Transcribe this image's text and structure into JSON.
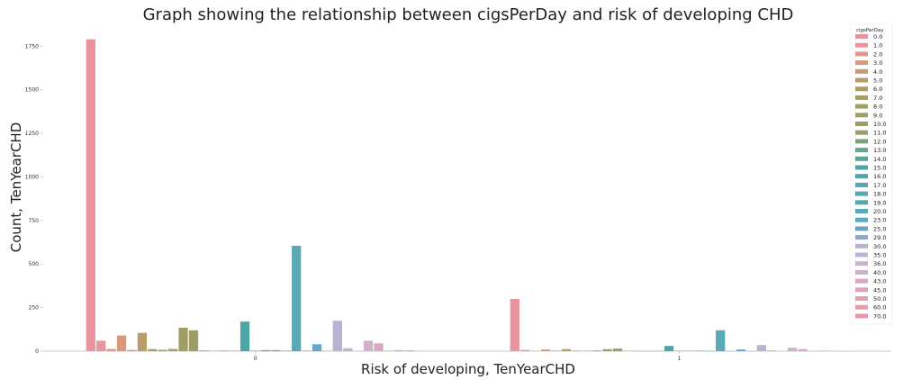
{
  "chart_data": {
    "type": "bar",
    "title": "Graph showing the relationship between cigsPerDay and risk of developing CHD",
    "xlabel": "Risk of developing, TenYearCHD",
    "ylabel": "Count, TenYearCHD",
    "categories": [
      "0",
      "1"
    ],
    "ylim": [
      0,
      1850
    ],
    "yticks": [
      0,
      250,
      500,
      750,
      1000,
      1250,
      1500,
      1750
    ],
    "grid": false,
    "legend_title": "cigsPerDay",
    "legend_position": "top-right",
    "series": [
      {
        "name": "0.0",
        "color": "#e8949f",
        "values": [
          1790,
          300
        ]
      },
      {
        "name": "1.0",
        "color": "#e8949f",
        "values": [
          60,
          7
        ]
      },
      {
        "name": "2.0",
        "color": "#e59488",
        "values": [
          13,
          2
        ]
      },
      {
        "name": "3.0",
        "color": "#d8997a",
        "values": [
          90,
          10
        ]
      },
      {
        "name": "4.0",
        "color": "#c99b74",
        "values": [
          7,
          3
        ]
      },
      {
        "name": "5.0",
        "color": "#b99c6c",
        "values": [
          105,
          12
        ]
      },
      {
        "name": "6.0",
        "color": "#ab9d69",
        "values": [
          12,
          3
        ]
      },
      {
        "name": "7.0",
        "color": "#a49e67",
        "values": [
          8,
          2
        ]
      },
      {
        "name": "8.0",
        "color": "#a29f66",
        "values": [
          13,
          4
        ]
      },
      {
        "name": "9.0",
        "color": "#a29f66",
        "values": [
          135,
          12
        ]
      },
      {
        "name": "10.0",
        "color": "#9d9e66",
        "values": [
          120,
          15
        ]
      },
      {
        "name": "11.0",
        "color": "#9aa068",
        "values": [
          4,
          2
        ]
      },
      {
        "name": "12.0",
        "color": "#7ea07c",
        "values": [
          2,
          1
        ]
      },
      {
        "name": "13.0",
        "color": "#6ba28b",
        "values": [
          3,
          1
        ]
      },
      {
        "name": "14.0",
        "color": "#5ea398",
        "values": [
          2,
          1
        ]
      },
      {
        "name": "15.0",
        "color": "#4da5a8",
        "values": [
          170,
          30
        ]
      },
      {
        "name": "16.0",
        "color": "#4ea6ae",
        "values": [
          3,
          2
        ]
      },
      {
        "name": "17.0",
        "color": "#53a7b2",
        "values": [
          6,
          2
        ]
      },
      {
        "name": "18.0",
        "color": "#55a8b4",
        "values": [
          6,
          3
        ]
      },
      {
        "name": "19.0",
        "color": "#57a8b4",
        "values": [
          3,
          1
        ]
      },
      {
        "name": "20.0",
        "color": "#5aa9b5",
        "values": [
          605,
          120
        ]
      },
      {
        "name": "23.0",
        "color": "#5ea9bf",
        "values": [
          3,
          1
        ]
      },
      {
        "name": "25.0",
        "color": "#63a8c7",
        "values": [
          40,
          10
        ]
      },
      {
        "name": "29.0",
        "color": "#8ca8cc",
        "values": [
          2,
          1
        ]
      },
      {
        "name": "30.0",
        "color": "#b9b2d1",
        "values": [
          175,
          35
        ]
      },
      {
        "name": "35.0",
        "color": "#bfb4cf",
        "values": [
          17,
          5
        ]
      },
      {
        "name": "36.0",
        "color": "#c5b6ce",
        "values": [
          2,
          1
        ]
      },
      {
        "name": "40.0",
        "color": "#cdb1cd",
        "values": [
          60,
          20
        ]
      },
      {
        "name": "43.0",
        "color": "#d6a8c4",
        "values": [
          45,
          12
        ]
      },
      {
        "name": "45.0",
        "color": "#dea2bc",
        "values": [
          3,
          1
        ]
      },
      {
        "name": "50.0",
        "color": "#e3a0b3",
        "values": [
          6,
          3
        ]
      },
      {
        "name": "60.0",
        "color": "#e89cab",
        "values": [
          5,
          2
        ]
      },
      {
        "name": "70.0",
        "color": "#e898a6",
        "values": [
          2,
          1
        ]
      }
    ]
  }
}
